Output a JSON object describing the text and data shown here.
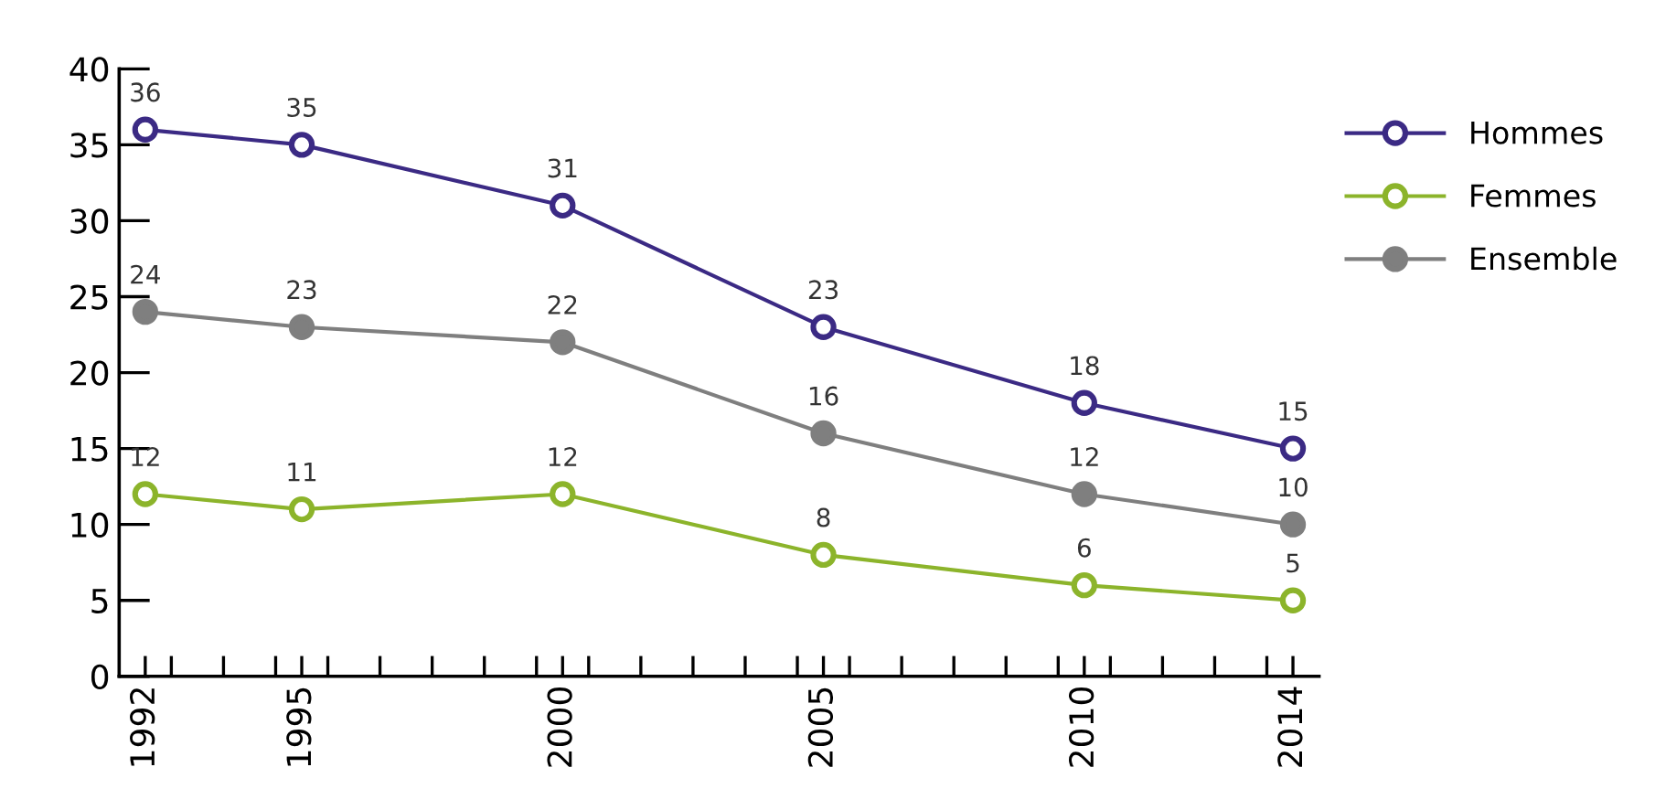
{
  "chart_data": {
    "type": "line",
    "x": [
      1992,
      1995,
      2000,
      2005,
      2010,
      2014
    ],
    "series": [
      {
        "name": "Hommes",
        "color": "#3b2a84",
        "values": [
          36,
          35,
          31,
          23,
          18,
          15
        ],
        "marker": "circle_open"
      },
      {
        "name": "Femmes",
        "color": "#8cb42b",
        "values": [
          12,
          11,
          12,
          8,
          6,
          5
        ],
        "marker": "circle_open"
      },
      {
        "name": "Ensemble",
        "color": "#7f7f7f",
        "values": [
          24,
          23,
          22,
          16,
          12,
          10
        ],
        "marker": "circle"
      }
    ],
    "xlim": [
      1991.5,
      2014.5
    ],
    "xticks": [
      1992,
      1995,
      2000,
      2005,
      2010,
      2014
    ],
    "ylim": [
      0,
      40
    ],
    "yticks": [
      0,
      5,
      10,
      15,
      20,
      25,
      30,
      35,
      40
    ],
    "data_labels": true,
    "grid": false,
    "legend": "top right",
    "line_style": "solid"
  }
}
